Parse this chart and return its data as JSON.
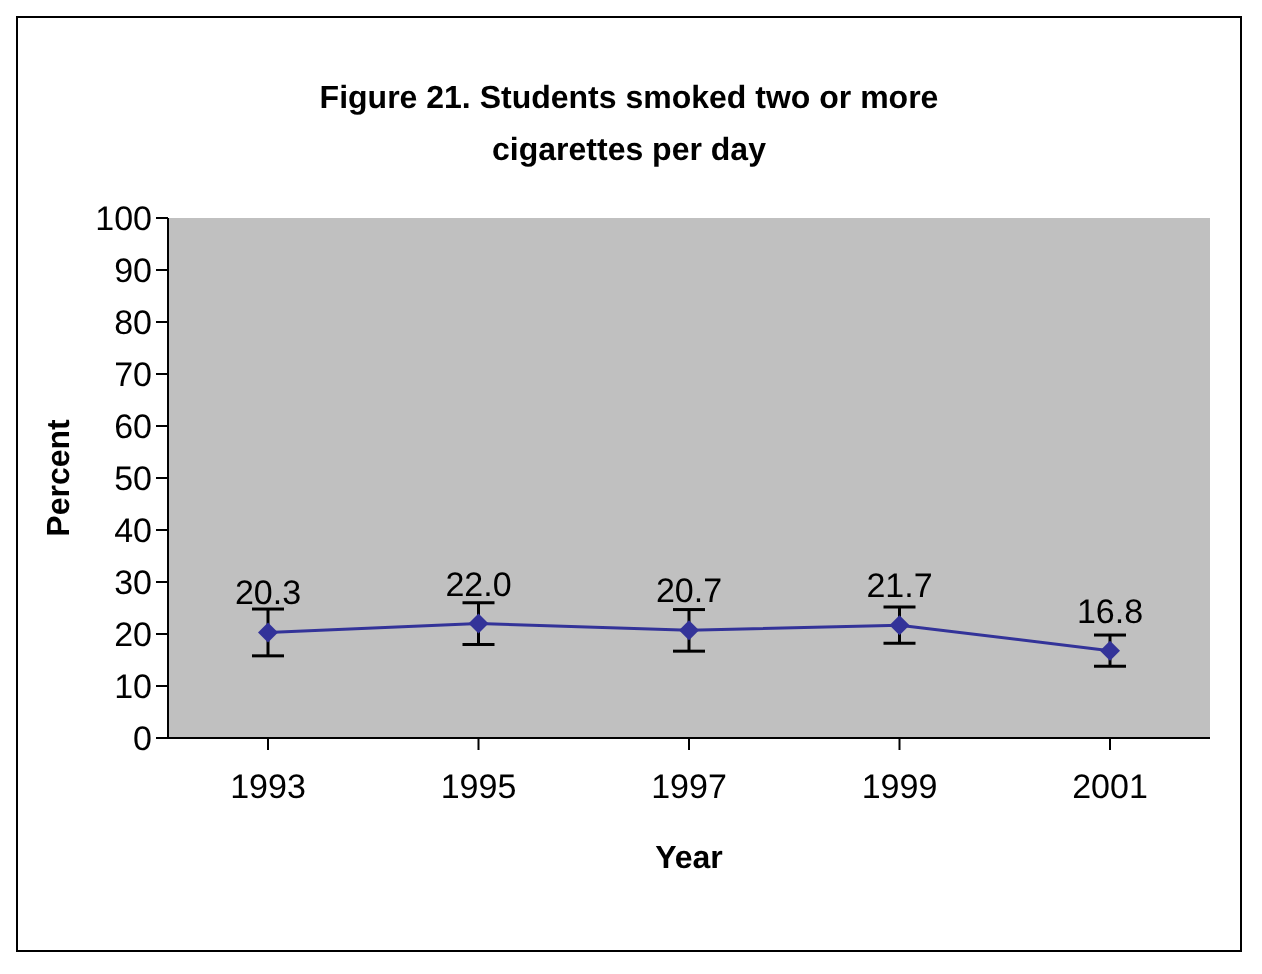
{
  "chart_data": {
    "type": "line",
    "title": "Figure 21. Students smoked two or more cigarettes per day",
    "xlabel": "Year",
    "ylabel": "Percent",
    "categories": [
      "1993",
      "1995",
      "1997",
      "1999",
      "2001"
    ],
    "series": [
      {
        "color": "#333399",
        "values": [
          20.3,
          22.0,
          20.7,
          21.7,
          16.8
        ],
        "errors": [
          4.5,
          4,
          4,
          3.5,
          3
        ],
        "value_labels": [
          "20.3",
          "22.0",
          "20.7",
          "21.7",
          "16.8"
        ]
      }
    ],
    "ylim": [
      0,
      100
    ],
    "yticks": [
      0,
      10,
      20,
      30,
      40,
      50,
      60,
      70,
      80,
      90,
      100
    ],
    "grid": false,
    "marker": "diamond",
    "line_style": "solid"
  }
}
